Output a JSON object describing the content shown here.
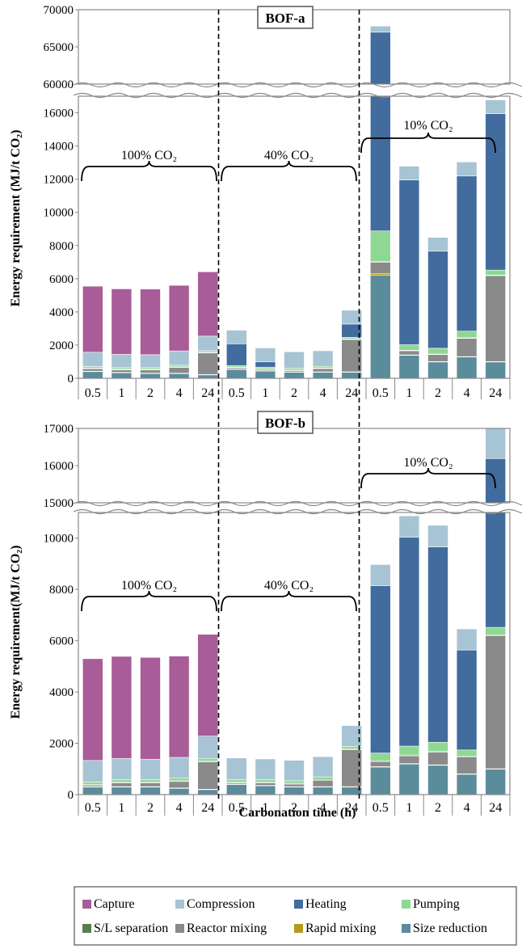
{
  "legend": {
    "items": [
      {
        "name": "Capture",
        "color": "#a85c98"
      },
      {
        "name": "Compression",
        "color": "#a6c4d4"
      },
      {
        "name": "Heating",
        "color": "#426b9e"
      },
      {
        "name": "Pumping",
        "color": "#8fd894"
      },
      {
        "name": "S/L separation",
        "color": "#5b7d4c"
      },
      {
        "name": "Reactor mixing",
        "color": "#8a8a8a"
      },
      {
        "name": "Rapid mixing",
        "color": "#b59a1e"
      },
      {
        "name": "Size reduction",
        "color": "#5b8c9c"
      }
    ]
  },
  "chart_data": [
    {
      "type": "bar",
      "stacked": true,
      "title": "BOF-a",
      "xlabel": "Carbonation time (h)",
      "ylabel": "Energy requirement (MJ/t CO₂)",
      "axis_break": {
        "from": 17000,
        "to": 60000
      },
      "ylim_lower": [
        0,
        17000
      ],
      "ylim_upper": [
        60000,
        70000
      ],
      "yticks_lower": [
        "0",
        "2000",
        "4000",
        "6000",
        "8000",
        "10000",
        "12000",
        "14000",
        "16000"
      ],
      "yticks_upper": [
        "60000",
        "65000",
        "70000"
      ],
      "groups": [
        {
          "label": "100% CO₂",
          "categories": [
            "0.5",
            "1",
            "2",
            "4",
            "24"
          ]
        },
        {
          "label": "40% CO₂",
          "categories": [
            "0.5",
            "1",
            "2",
            "4",
            "24"
          ]
        },
        {
          "label": "10% CO₂",
          "categories": [
            "0.5",
            "1",
            "2",
            "4",
            "24"
          ]
        }
      ],
      "series_order": [
        "Size reduction",
        "Rapid mixing",
        "Reactor mixing",
        "S/L separation",
        "Pumping",
        "Heating",
        "Compression",
        "Capture"
      ],
      "bars": [
        [
          420,
          10,
          150,
          30,
          100,
          0,
          860,
          3980
        ],
        [
          350,
          10,
          150,
          30,
          100,
          0,
          800,
          3950
        ],
        [
          300,
          10,
          200,
          30,
          100,
          0,
          780,
          3960
        ],
        [
          300,
          10,
          350,
          30,
          100,
          0,
          860,
          3950
        ],
        [
          220,
          10,
          1300,
          30,
          100,
          0,
          880,
          3880
        ],
        [
          550,
          10,
          80,
          30,
          100,
          1310,
          820,
          0
        ],
        [
          450,
          10,
          80,
          30,
          100,
          330,
          830,
          0
        ],
        [
          380,
          10,
          80,
          30,
          100,
          0,
          1000,
          0
        ],
        [
          380,
          10,
          200,
          30,
          100,
          0,
          940,
          0
        ],
        [
          380,
          10,
          1950,
          30,
          100,
          800,
          830,
          0
        ],
        [
          6200,
          100,
          700,
          30,
          1850,
          58100,
          820,
          0
        ],
        [
          1400,
          10,
          250,
          30,
          330,
          9930,
          830,
          0
        ],
        [
          1000,
          10,
          420,
          30,
          350,
          5850,
          830,
          0
        ],
        [
          1300,
          10,
          1100,
          30,
          400,
          9350,
          850,
          0
        ],
        [
          1000,
          10,
          5180,
          30,
          300,
          9430,
          830,
          0
        ]
      ]
    },
    {
      "type": "bar",
      "stacked": true,
      "title": "BOF-b",
      "xlabel": "Carbonation time (h)",
      "ylabel": "Energy requirement(MJ/t CO₂)",
      "axis_break": {
        "from": 11000,
        "to": 15000
      },
      "ylim_lower": [
        0,
        11000
      ],
      "ylim_upper": [
        15000,
        17000
      ],
      "yticks_lower": [
        "0",
        "2000",
        "4000",
        "6000",
        "8000",
        "10000"
      ],
      "yticks_upper": [
        "15000",
        "16000",
        "17000"
      ],
      "groups": [
        {
          "label": "100% CO₂",
          "categories": [
            "0.5",
            "1",
            "2",
            "4",
            "24"
          ]
        },
        {
          "label": "40% CO₂",
          "categories": [
            "0.5",
            "1",
            "2",
            "4",
            "24"
          ]
        },
        {
          "label": "10% CO₂",
          "categories": [
            "0.5",
            "1",
            "2",
            "4",
            "24"
          ]
        }
      ],
      "series_order": [
        "Size reduction",
        "Rapid mixing",
        "Reactor mixing",
        "S/L separation",
        "Pumping",
        "Heating",
        "Compression",
        "Capture"
      ],
      "bars": [
        [
          300,
          10,
          50,
          30,
          100,
          0,
          840,
          3970
        ],
        [
          300,
          10,
          150,
          30,
          100,
          0,
          820,
          3980
        ],
        [
          300,
          10,
          150,
          30,
          100,
          0,
          790,
          3970
        ],
        [
          250,
          10,
          250,
          30,
          100,
          0,
          810,
          3950
        ],
        [
          200,
          10,
          1070,
          30,
          100,
          0,
          870,
          3970
        ],
        [
          400,
          10,
          50,
          30,
          100,
          0,
          840,
          0
        ],
        [
          350,
          10,
          100,
          30,
          100,
          0,
          800,
          0
        ],
        [
          300,
          10,
          100,
          30,
          100,
          0,
          800,
          0
        ],
        [
          300,
          10,
          250,
          30,
          100,
          0,
          790,
          0
        ],
        [
          300,
          10,
          1440,
          30,
          100,
          0,
          810,
          0
        ],
        [
          1080,
          10,
          200,
          30,
          300,
          6530,
          820,
          0
        ],
        [
          1200,
          10,
          300,
          30,
          350,
          8150,
          830,
          0
        ],
        [
          1150,
          10,
          500,
          30,
          350,
          7620,
          840,
          0
        ],
        [
          800,
          10,
          650,
          30,
          250,
          3900,
          820,
          0
        ],
        [
          1000,
          10,
          5180,
          30,
          300,
          9670,
          810,
          0
        ]
      ]
    }
  ]
}
